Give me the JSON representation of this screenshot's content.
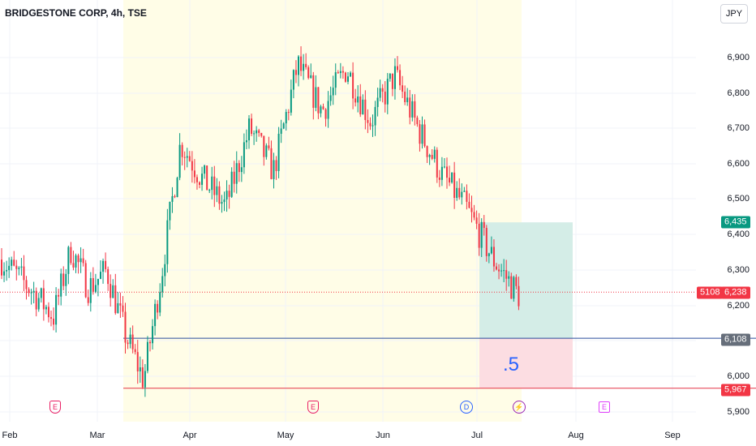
{
  "header": {
    "title": "BRIDGESTONE CORP, 4h, TSE",
    "currency": "JPY"
  },
  "price_axis": [
    "6,900",
    "6,800",
    "6,700",
    "6,600",
    "6,500",
    "6,400",
    "6,300",
    "6,200",
    "6,100",
    "6,000",
    "5,900"
  ],
  "time_axis": [
    "Feb",
    "Mar",
    "Apr",
    "May",
    "Jun",
    "Jul",
    "Aug",
    "Sep"
  ],
  "badges": {
    "target": "6,435",
    "current": "6,238",
    "countdown": "5108",
    "entry": "6,108",
    "stop": "5,967"
  },
  "position_tool": {
    "ratio_label": ".5"
  },
  "events": [
    {
      "type": "earnings",
      "label": "E",
      "icon": "earnings-icon"
    },
    {
      "type": "earnings",
      "label": "E",
      "icon": "earnings-icon"
    },
    {
      "type": "dividend",
      "label": "D",
      "icon": "dividend-icon"
    },
    {
      "type": "split",
      "label": "⚡",
      "icon": "lightning-icon"
    },
    {
      "type": "earnings-upcoming",
      "label": "E",
      "icon": "earnings-icon"
    }
  ],
  "colors": {
    "up": "#089981",
    "down": "#f23645",
    "highlight": "#fffde7",
    "target_zone": "#d4ede7",
    "stop_zone": "#fcdde2",
    "entry_line": "#2a4d9c",
    "stop_line": "#e33446"
  },
  "chart_data": {
    "type": "candlestick",
    "symbol": "BRIDGESTONE CORP",
    "interval": "4h",
    "exchange": "TSE",
    "currency": "JPY",
    "ylim": [
      5870,
      6960
    ],
    "close_path": [
      {
        "x": "Feb",
        "y": 6330
      },
      {
        "x": "Feb",
        "y": 6230
      },
      {
        "x": "Feb",
        "y": 6170
      },
      {
        "x": "Feb",
        "y": 6360
      },
      {
        "x": "Feb",
        "y": 6250
      },
      {
        "x": "Mar",
        "y": 6300
      },
      {
        "x": "Mar",
        "y": 6120
      },
      {
        "x": "Mar",
        "y": 5990
      },
      {
        "x": "Mar",
        "y": 6300
      },
      {
        "x": "Mar",
        "y": 6660
      },
      {
        "x": "Apr",
        "y": 6560
      },
      {
        "x": "Apr",
        "y": 6480
      },
      {
        "x": "Apr",
        "y": 6700
      },
      {
        "x": "Apr",
        "y": 6580
      },
      {
        "x": "May",
        "y": 6880
      },
      {
        "x": "May",
        "y": 6750
      },
      {
        "x": "May",
        "y": 6870
      },
      {
        "x": "May",
        "y": 6720
      },
      {
        "x": "Jun",
        "y": 6850
      },
      {
        "x": "Jun",
        "y": 6700
      },
      {
        "x": "Jun",
        "y": 6570
      },
      {
        "x": "Jun",
        "y": 6480
      },
      {
        "x": "Jul",
        "y": 6330
      },
      {
        "x": "Jul",
        "y": 6200
      },
      {
        "x": "Jul",
        "y": 6238
      }
    ],
    "current_price": 6238,
    "position": {
      "target": 6435,
      "entry": 6108,
      "stop": 5967,
      "ratio": ".5"
    }
  }
}
